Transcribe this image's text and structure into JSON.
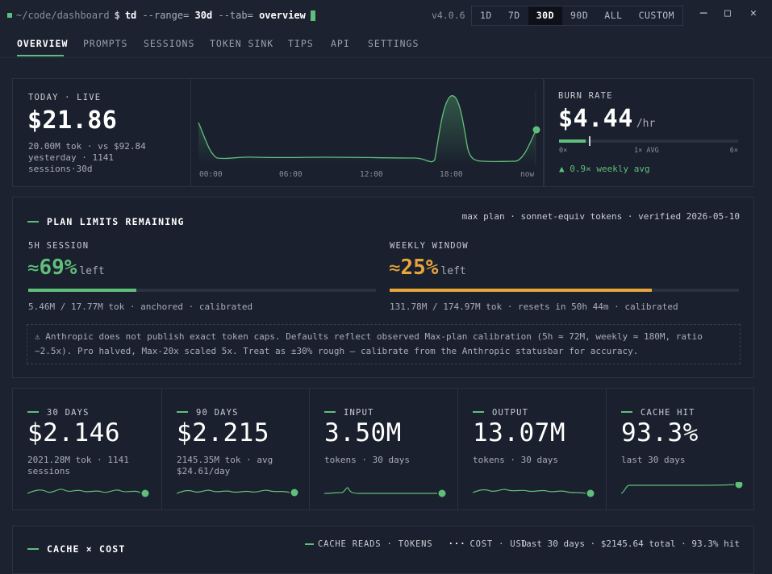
{
  "terminal": {
    "path": "~/code/dashboard",
    "dollar": "$",
    "cmd": "td",
    "range_flag": "--range=",
    "range_val": "30d",
    "tab_flag": "--tab=",
    "tab_val": "overview",
    "version": "v4.0.6"
  },
  "ranges": [
    "1D",
    "7D",
    "30D",
    "90D",
    "ALL",
    "CUSTOM"
  ],
  "active_range": "30D",
  "window_controls": {
    "minimize": "─",
    "maximize": "□",
    "close": "✕"
  },
  "tabs": [
    "OVERVIEW",
    "PROMPTS",
    "SESSIONS",
    "TOKEN SINK",
    "TIPS",
    "API",
    "SETTINGS"
  ],
  "active_tab": "OVERVIEW",
  "today": {
    "label": "TODAY · LIVE",
    "value": "$21.86",
    "line1": "20.00M tok · vs $92.84",
    "line2": "yesterday · 1141",
    "line3": "sessions·30d",
    "chart_ticks": [
      "00:00",
      "06:00",
      "12:00",
      "18:00",
      "now"
    ]
  },
  "burn": {
    "label": "BURN RATE",
    "value": "$4.44",
    "unit": "/hr",
    "scale": [
      "0×",
      "1× AVG",
      "6×"
    ],
    "level": 0.15,
    "footer": "▲ 0.9× weekly avg"
  },
  "plan": {
    "title": "PLAN LIMITS REMAINING",
    "meta": "max plan · sonnet-equiv tokens · verified 2026-05-10",
    "session": {
      "label": "5H SESSION",
      "approx": "≈",
      "pct": "69%",
      "left": "left",
      "fill": 0.31,
      "detail": "5.46M / 17.77M tok · anchored · calibrated"
    },
    "weekly": {
      "label": "WEEKLY WINDOW",
      "approx": "≈",
      "pct": "25%",
      "left": "left",
      "fill": 0.75,
      "detail": "131.78M / 174.97M tok · resets in 50h 44m · calibrated"
    },
    "warning_icon": "⚠",
    "warning_line1": "Anthropic does not publish exact token caps. Defaults reflect observed Max-plan calibration (5h ≈ 72M, weekly ≈ 180M, ratio",
    "warning_line2": "~2.5x). Pro halved, Max-20x scaled 5x. Treat as ±30% rough — calibrate from the Anthropic statusbar for accuracy."
  },
  "stats": [
    {
      "label": "30 DAYS",
      "value": "$2.146",
      "sub1": "2021.28M tok · 1141",
      "sub2": "sessions"
    },
    {
      "label": "90 DAYS",
      "value": "$2.215",
      "sub1": "2145.35M tok · avg",
      "sub2": "$24.61/day"
    },
    {
      "label": "INPUT",
      "value": "3.50M",
      "sub1": "tokens · 30 days",
      "sub2": ""
    },
    {
      "label": "OUTPUT",
      "value": "13.07M",
      "sub1": "tokens · 30 days",
      "sub2": ""
    },
    {
      "label": "CACHE HIT",
      "value": "93.3%",
      "sub1": "last 30 days",
      "sub2": ""
    }
  ],
  "cache_cost": {
    "title": "CACHE × COST",
    "legend_reads": "CACHE READS · TOKENS",
    "legend_cost": "COST · USD",
    "summary": "last 30 days · $2145.64 total · 93.3% hit"
  },
  "colors": {
    "accent_green": "#5fbf7a",
    "accent_orange": "#e8a53c",
    "background": "#1c2230",
    "panel": "#1a202d"
  }
}
